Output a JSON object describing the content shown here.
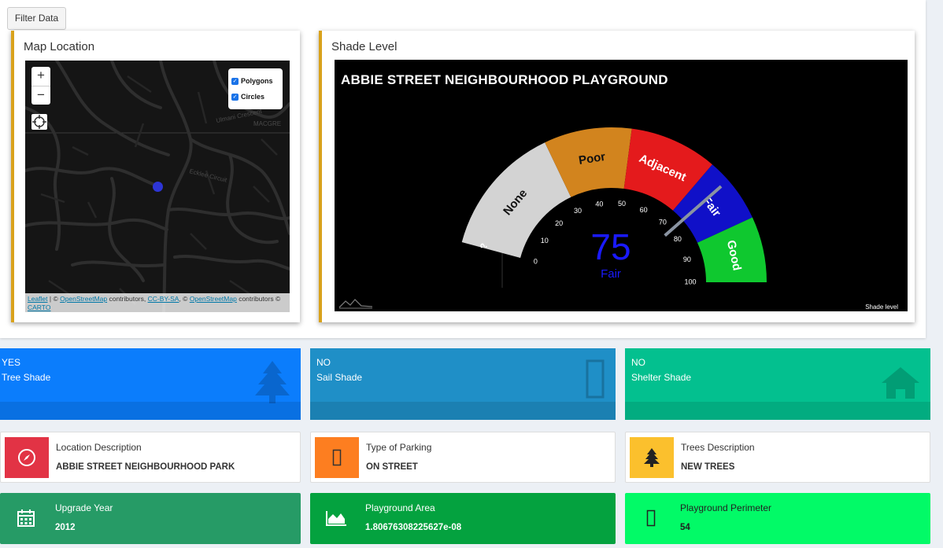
{
  "filter_button": "Filter Data",
  "map": {
    "title": "Map Location",
    "zoom_in": "+",
    "zoom_out": "−",
    "layers": [
      "Polygons",
      "Circles"
    ],
    "street_labels": [
      "MACGRE",
      "Ulmani Crescent",
      "Ecklee Circuit"
    ],
    "attribution": {
      "leaflet": "Leaflet",
      "sep1": " | © ",
      "osm": "OpenStreetMap",
      "contributors": " contributors, ",
      "license": "CC-BY-SA",
      "sep2": ", © ",
      "osm2": "OpenStreetMap",
      "contributors2": " contributors © ",
      "carto": "CARTO"
    }
  },
  "gauge": {
    "panel_title": "Shade Level",
    "title": "ABBIE STREET NEIGHBOURHOOD PLAYGROUND",
    "value": "75",
    "value_label": "Fair",
    "footer": "Shade level",
    "side_glyph": "?",
    "bands": [
      {
        "label": "None",
        "from": 0,
        "to": 30,
        "color": "#d3d3d3"
      },
      {
        "label": "Poor",
        "from": 30,
        "to": 50,
        "color": "#d2841e"
      },
      {
        "label": "Adjacent",
        "from": 50,
        "to": 70,
        "color": "#e41a1c"
      },
      {
        "label": "Fair",
        "from": 70,
        "to": 85,
        "color": "#1010c8"
      },
      {
        "label": "Good",
        "from": 85,
        "to": 100,
        "color": "#0fc82f"
      }
    ],
    "ticks": [
      "0",
      "10",
      "20",
      "30",
      "40",
      "50",
      "60",
      "70",
      "80",
      "90",
      "100"
    ],
    "colors": {
      "value": "#1a1aff",
      "background": "#000000"
    }
  },
  "value_boxes": [
    {
      "value": "YES",
      "label": "Tree Shade",
      "icon": "tree-icon",
      "color": "#0b7dfc"
    },
    {
      "value": "NO",
      "label": "Sail Shade",
      "icon": "placeholder-icon",
      "color": "#1f8fc7"
    },
    {
      "value": "NO",
      "label": "Shelter Shade",
      "icon": "home-icon",
      "color": "#03c08f"
    }
  ],
  "info_boxes": [
    {
      "title": "Location Description",
      "value": "ABBIE STREET NEIGHBOURHOOD PARK",
      "icon": "compass-icon",
      "color": "#e23345"
    },
    {
      "title": "Type of Parking",
      "value": "ON STREET",
      "icon": "placeholder-icon",
      "color": "#fd7e20"
    },
    {
      "title": "Trees Description",
      "value": "NEW TREES",
      "icon": "tree-icon",
      "color": "#fbc02d"
    },
    {
      "title": "Upgrade Year",
      "value": "2012",
      "icon": "calendar-icon",
      "color": "#269b66"
    },
    {
      "title": "Playground Area",
      "value": "1.80676308225627e-08",
      "icon": "area-chart-icon",
      "color": "#04a23f"
    },
    {
      "title": "Playground Perimeter",
      "value": "54",
      "icon": "placeholder-icon",
      "color": "#02fa67"
    }
  ]
}
